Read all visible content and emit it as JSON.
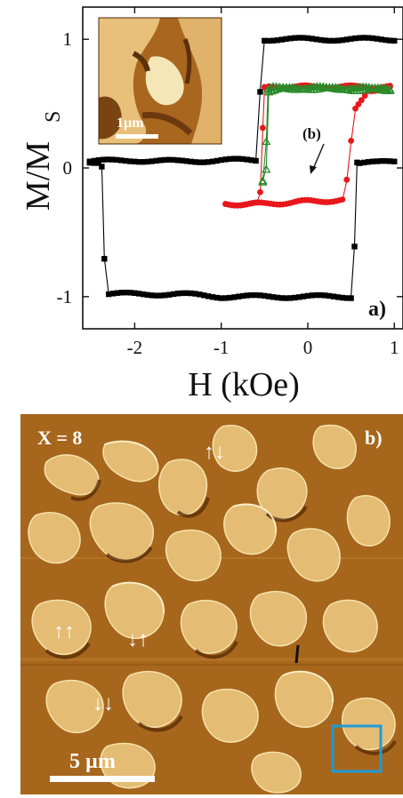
{
  "panel_a": {
    "label": "a)",
    "annotation": "(b)",
    "inset": {
      "scalebar_label": "1µm"
    },
    "chart_data": {
      "type": "line",
      "xlabel": "H (kOe)",
      "ylabel_main": "M/M",
      "ylabel_sub": "S",
      "xlim": [
        -2.6,
        1.1
      ],
      "ylim": [
        -1.25,
        1.25
      ],
      "xticks": [
        -2,
        -1,
        0,
        1
      ],
      "xtick_labels": [
        "-2",
        "-1",
        "0",
        "1"
      ],
      "yticks": [
        -1,
        0,
        1
      ],
      "ytick_labels": [
        "-1",
        "0",
        "1"
      ],
      "series": [
        {
          "color": "#000000",
          "marker": "square",
          "x": [
            -2.52,
            -2.0,
            -1.5,
            -1.0,
            -0.6,
            -0.55,
            -0.5,
            -0.45,
            -0.3,
            0.0,
            0.5,
            1.0
          ],
          "y": [
            0.05,
            0.06,
            0.05,
            0.06,
            0.06,
            0.6,
            1.0,
            1.0,
            1.0,
            1.0,
            1.0,
            1.0
          ],
          "x_return": [
            1.0,
            0.8,
            0.6,
            0.57,
            0.54,
            0.5,
            0.0,
            -0.5,
            -1.0,
            -1.5,
            -2.0,
            -2.3,
            -2.35,
            -2.38,
            -2.42,
            -2.52
          ],
          "y_return": [
            0.05,
            0.04,
            0.04,
            0.05,
            -0.6,
            -1.0,
            -1.0,
            -1.0,
            -1.0,
            -0.98,
            -0.98,
            -0.98,
            -0.7,
            0.02,
            0.05,
            0.05
          ]
        },
        {
          "color": "#e8171b",
          "marker": "circle",
          "x": [
            -0.95,
            -0.6,
            -0.55,
            -0.52,
            -0.5,
            -0.45,
            0.0,
            0.5,
            0.95
          ],
          "y": [
            -0.28,
            -0.28,
            -0.2,
            0.3,
            0.62,
            0.63,
            0.63,
            0.63,
            0.63
          ],
          "x_return": [
            0.95,
            0.7,
            0.62,
            0.55,
            0.5,
            0.45,
            0.4,
            0.0,
            -0.5,
            -0.95
          ],
          "y_return": [
            0.63,
            0.6,
            0.52,
            0.45,
            0.2,
            -0.1,
            -0.25,
            -0.26,
            -0.28,
            -0.28
          ]
        },
        {
          "color": "#2a8a2a",
          "marker": "triangle",
          "x": [
            -0.52,
            -0.48,
            -0.46,
            -0.4,
            0.0,
            0.5,
            0.95
          ],
          "y": [
            -0.1,
            0.2,
            0.6,
            0.62,
            0.62,
            0.62,
            0.61
          ],
          "x_return": [
            0.95,
            0.5,
            0.0,
            -0.35,
            -0.45,
            -0.48,
            -0.52
          ],
          "y_return": [
            0.61,
            0.61,
            0.62,
            0.61,
            0.6,
            0.0,
            -0.1
          ]
        }
      ]
    }
  },
  "panel_b": {
    "label": "b)",
    "composition_label": "X = 8",
    "scalebar_label": "5 µm",
    "domain_arrows": [
      "↑↓",
      "↑↑",
      "↓↑",
      "↓↓"
    ],
    "box_color": "#1e9bd7",
    "background_color": "#a6661c"
  }
}
